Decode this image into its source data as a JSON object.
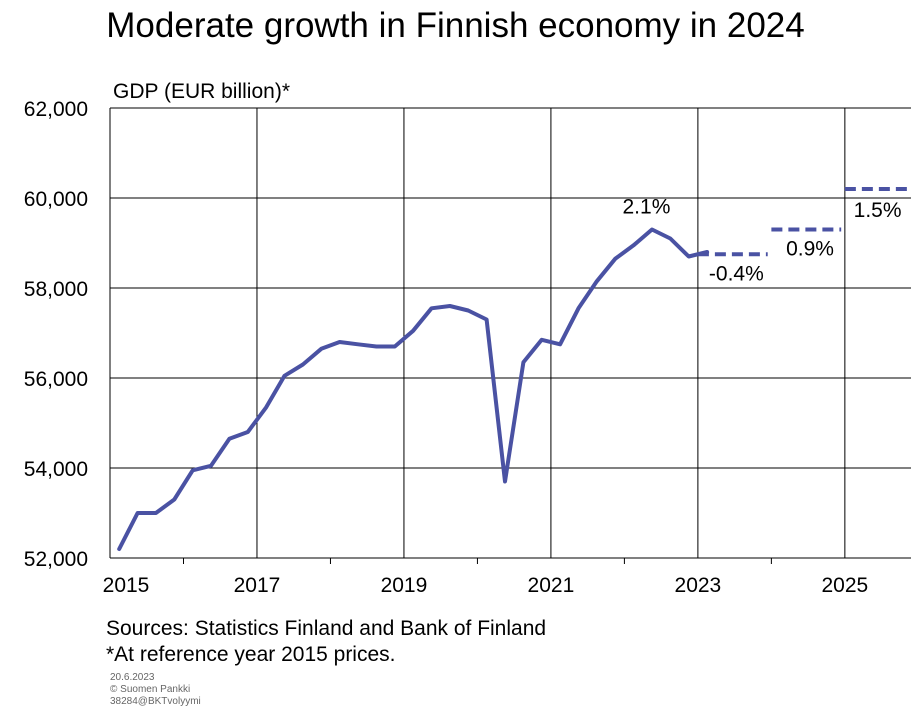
{
  "title": "Moderate growth in Finnish economy in 2024",
  "footer": {
    "sources": "Sources: Statistics Finland and Bank of Finland",
    "note": "*At reference year 2015 prices.",
    "date": "20.6.2023",
    "copyright": "© Suomen Pankki",
    "code": "38284@BKTvolyymi"
  },
  "colors": {
    "line": "#4a52a3",
    "grid": "#000000"
  },
  "chart_data": {
    "type": "line",
    "title": "Moderate growth in Finnish economy in 2024",
    "ylabel": "GDP (EUR billion)*",
    "xlabel": "",
    "xlim": [
      2015,
      2025.9
    ],
    "ylim": [
      52000,
      62000
    ],
    "yticks": [
      52000,
      54000,
      56000,
      58000,
      60000,
      62000
    ],
    "ytick_labels": [
      "52,000",
      "54,000",
      "56,000",
      "58,000",
      "60,000",
      "62,000"
    ],
    "xticks": [
      2015,
      2017,
      2019,
      2021,
      2023,
      2025
    ],
    "xtick_labels": [
      "2015",
      "2017",
      "2019",
      "2021",
      "2023",
      "2025"
    ],
    "grid": true,
    "series": [
      {
        "style": "solid",
        "x": [
          2015.125,
          2015.375,
          2015.625,
          2015.875,
          2016.125,
          2016.375,
          2016.625,
          2016.875,
          2017.125,
          2017.375,
          2017.625,
          2017.875,
          2018.125,
          2018.375,
          2018.625,
          2018.875,
          2019.125,
          2019.375,
          2019.625,
          2019.875,
          2020.125,
          2020.375,
          2020.625,
          2020.875,
          2021.125,
          2021.375,
          2021.625,
          2021.875,
          2022.125,
          2022.375,
          2022.625,
          2022.875,
          2023.125
        ],
        "y": [
          52200,
          53000,
          53000,
          53300,
          53950,
          54050,
          54650,
          54800,
          55350,
          56050,
          56300,
          56650,
          56800,
          56750,
          56700,
          56700,
          57050,
          57550,
          57600,
          57500,
          57300,
          53700,
          56350,
          56850,
          56750,
          57550,
          58150,
          58650,
          58950,
          59300,
          59100,
          58700,
          58800
        ]
      },
      {
        "style": "dashed",
        "segments": [
          {
            "x": [
              2023.0,
              2023.95
            ],
            "y": [
              58750,
              58750
            ],
            "label": "-0.4%"
          },
          {
            "x": [
              2024.0,
              2024.95
            ],
            "y": [
              59300,
              59300
            ],
            "label": "0.9%"
          },
          {
            "x": [
              2025.0,
              2025.9
            ],
            "y": [
              60200,
              60200
            ],
            "label": "1.5%"
          }
        ]
      }
    ],
    "annotations": [
      {
        "text": "2.1%",
        "x": 2022.3,
        "y": 59300
      }
    ]
  }
}
